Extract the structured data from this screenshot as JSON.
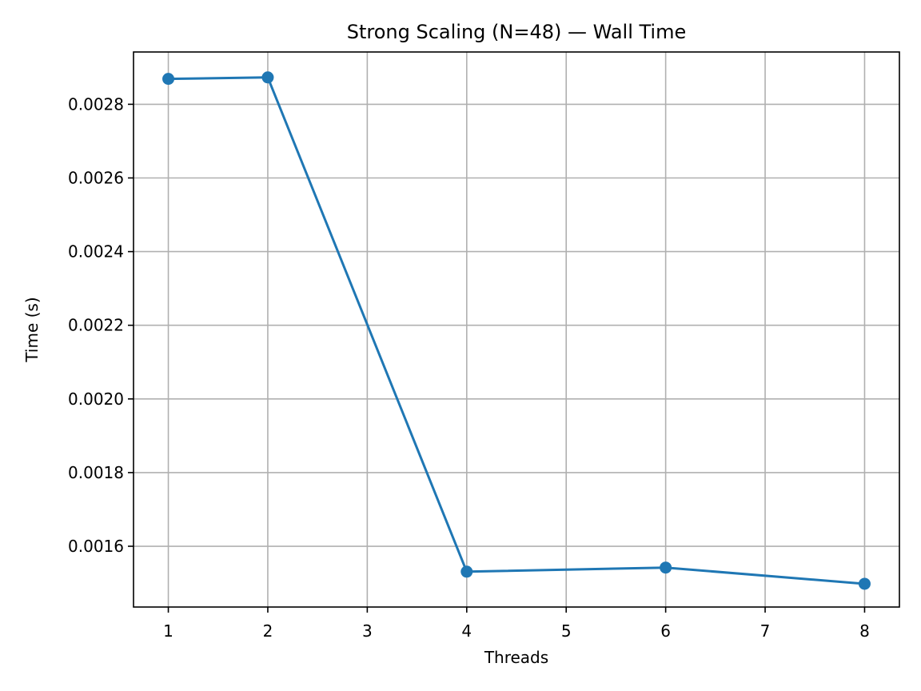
{
  "chart_data": {
    "type": "line",
    "title": "Strong Scaling (N=48) — Wall Time",
    "xlabel": "Threads",
    "ylabel": "Time (s)",
    "xlim": [
      0.65,
      8.35
    ],
    "ylim": [
      0.001435,
      0.002942
    ],
    "xticks": [
      1,
      2,
      3,
      4,
      5,
      6,
      7,
      8
    ],
    "xtick_labels": [
      "1",
      "2",
      "3",
      "4",
      "5",
      "6",
      "7",
      "8"
    ],
    "yticks": [
      0.0016,
      0.0018,
      0.002,
      0.0022,
      0.0024,
      0.0026,
      0.0028
    ],
    "ytick_labels": [
      "0.0016",
      "0.0018",
      "0.0020",
      "0.0022",
      "0.0024",
      "0.0026",
      "0.0028"
    ],
    "grid": true,
    "series": [
      {
        "color": "#1f77b4",
        "marker": "circle",
        "x": [
          1,
          2,
          4,
          6,
          8
        ],
        "y": [
          0.002869,
          0.002873,
          0.001531,
          0.001542,
          0.001498
        ]
      }
    ]
  }
}
